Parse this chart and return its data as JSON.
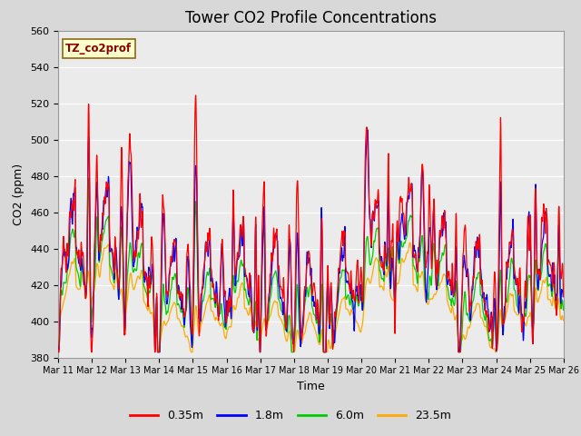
{
  "title": "Tower CO2 Profile Concentrations",
  "xlabel": "Time",
  "ylabel": "CO2 (ppm)",
  "annotation": "TZ_co2prof",
  "ylim": [
    380,
    560
  ],
  "yticks": [
    380,
    400,
    420,
    440,
    460,
    480,
    500,
    520,
    540,
    560
  ],
  "xtick_labels": [
    "Mar 11",
    "Mar 12",
    "Mar 13",
    "Mar 14",
    "Mar 15",
    "Mar 16",
    "Mar 17",
    "Mar 18",
    "Mar 19",
    "Mar 20",
    "Mar 21",
    "Mar 22",
    "Mar 23",
    "Mar 24",
    "Mar 25",
    "Mar 26"
  ],
  "line_colors": [
    "#ff0000",
    "#0000ff",
    "#00cc00",
    "#ffaa00"
  ],
  "line_labels": [
    "0.35m",
    "1.8m",
    "6.0m",
    "23.5m"
  ],
  "background_color": "#d8d8d8",
  "plot_bg_color": "#ebebeb",
  "grid_color": "#ffffff",
  "title_fontsize": 12,
  "axis_fontsize": 9,
  "tick_fontsize": 8,
  "n_days": 15,
  "ppd": 144,
  "base_co2": 400,
  "annotation_color": "#8b0000",
  "annotation_bg": "#ffffcc",
  "annotation_edge": "#8b6914"
}
